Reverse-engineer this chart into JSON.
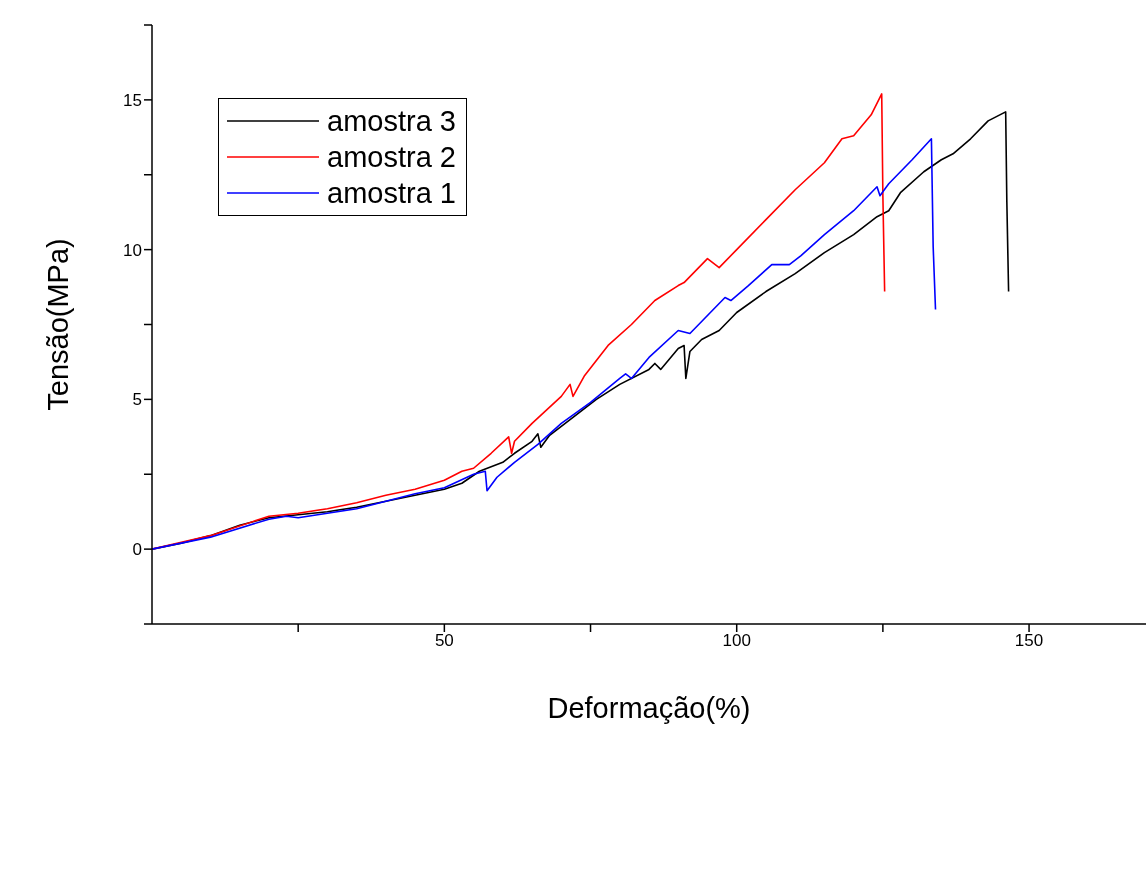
{
  "chart_data": {
    "type": "line",
    "xlabel": "Deformação(%)",
    "ylabel": "Tensão(MPa)",
    "xlim": [
      0,
      170
    ],
    "xticks": [
      {
        "value": 25,
        "label": null
      },
      50,
      {
        "value": 75,
        "label": null
      },
      100,
      {
        "value": 125,
        "label": null
      },
      150
    ],
    "ylim": [
      -2.5,
      17.5
    ],
    "yticks": [
      {
        "value": -2.5,
        "label": null
      },
      0,
      {
        "value": 2.5,
        "label": null
      },
      5,
      {
        "value": 7.5,
        "label": null
      },
      10,
      {
        "value": 12.5,
        "label": null
      },
      15,
      {
        "value": 17.5,
        "label": null
      }
    ],
    "grid": false,
    "legend": "top left",
    "marker": "none",
    "line_style": "solid",
    "series": [
      {
        "name": "amostra 3",
        "color": "#000000",
        "x": [
          0,
          5,
          10,
          15,
          20,
          25,
          30,
          35,
          40,
          45,
          50,
          53,
          56,
          60,
          62,
          65,
          66,
          66.5,
          68,
          72,
          76,
          80,
          85,
          86,
          87,
          90,
          91,
          91.3,
          92,
          94,
          97,
          100,
          105,
          110,
          115,
          120,
          124,
          126,
          128,
          132,
          135,
          137,
          140,
          143,
          146,
          146.2,
          146.5
        ],
        "values": [
          0,
          0.2,
          0.45,
          0.8,
          1.05,
          1.15,
          1.25,
          1.4,
          1.6,
          1.8,
          2.0,
          2.2,
          2.6,
          2.9,
          3.2,
          3.6,
          3.85,
          3.4,
          3.8,
          4.4,
          5.0,
          5.5,
          6.0,
          6.2,
          6.0,
          6.7,
          6.8,
          5.7,
          6.6,
          7.0,
          7.3,
          7.9,
          8.6,
          9.2,
          9.9,
          10.5,
          11.1,
          11.3,
          11.9,
          12.6,
          13.0,
          13.2,
          13.7,
          14.3,
          14.6,
          11.6,
          8.6
        ]
      },
      {
        "name": "amostra 2",
        "color": "#ff0000",
        "x": [
          0,
          10,
          20,
          25,
          30,
          35,
          40,
          45,
          50,
          53,
          55,
          58,
          61,
          61.5,
          62,
          65,
          70,
          71.5,
          72,
          74,
          78,
          82,
          86,
          90,
          91,
          95,
          97,
          100,
          105,
          110,
          115,
          118,
          120,
          123,
          124.8,
          125,
          125.3
        ],
        "values": [
          0,
          0.45,
          1.1,
          1.2,
          1.35,
          1.55,
          1.8,
          2.0,
          2.3,
          2.6,
          2.7,
          3.2,
          3.75,
          3.2,
          3.6,
          4.2,
          5.1,
          5.5,
          5.1,
          5.8,
          6.8,
          7.5,
          8.3,
          8.8,
          8.9,
          9.7,
          9.4,
          10.0,
          11.0,
          12.0,
          12.9,
          13.7,
          13.8,
          14.5,
          15.2,
          11.8,
          8.6
        ]
      },
      {
        "name": "amostra 1",
        "color": "#0000ff",
        "x": [
          0,
          10,
          20,
          23,
          25,
          30,
          35,
          40,
          45,
          50,
          55,
          57,
          57.3,
          59,
          62,
          66,
          70,
          75,
          80,
          81,
          82,
          85,
          90,
          92,
          95,
          98,
          99,
          102,
          106,
          109,
          111,
          115,
          120,
          124,
          124.5,
          126,
          130,
          133.3,
          133.6,
          134
        ],
        "values": [
          0,
          0.4,
          1.0,
          1.1,
          1.05,
          1.2,
          1.35,
          1.6,
          1.85,
          2.05,
          2.5,
          2.6,
          1.95,
          2.4,
          2.9,
          3.5,
          4.2,
          4.9,
          5.7,
          5.85,
          5.7,
          6.4,
          7.3,
          7.2,
          7.8,
          8.4,
          8.3,
          8.8,
          9.5,
          9.5,
          9.8,
          10.5,
          11.3,
          12.1,
          11.8,
          12.2,
          13.0,
          13.7,
          10.1,
          8.0
        ]
      }
    ]
  }
}
